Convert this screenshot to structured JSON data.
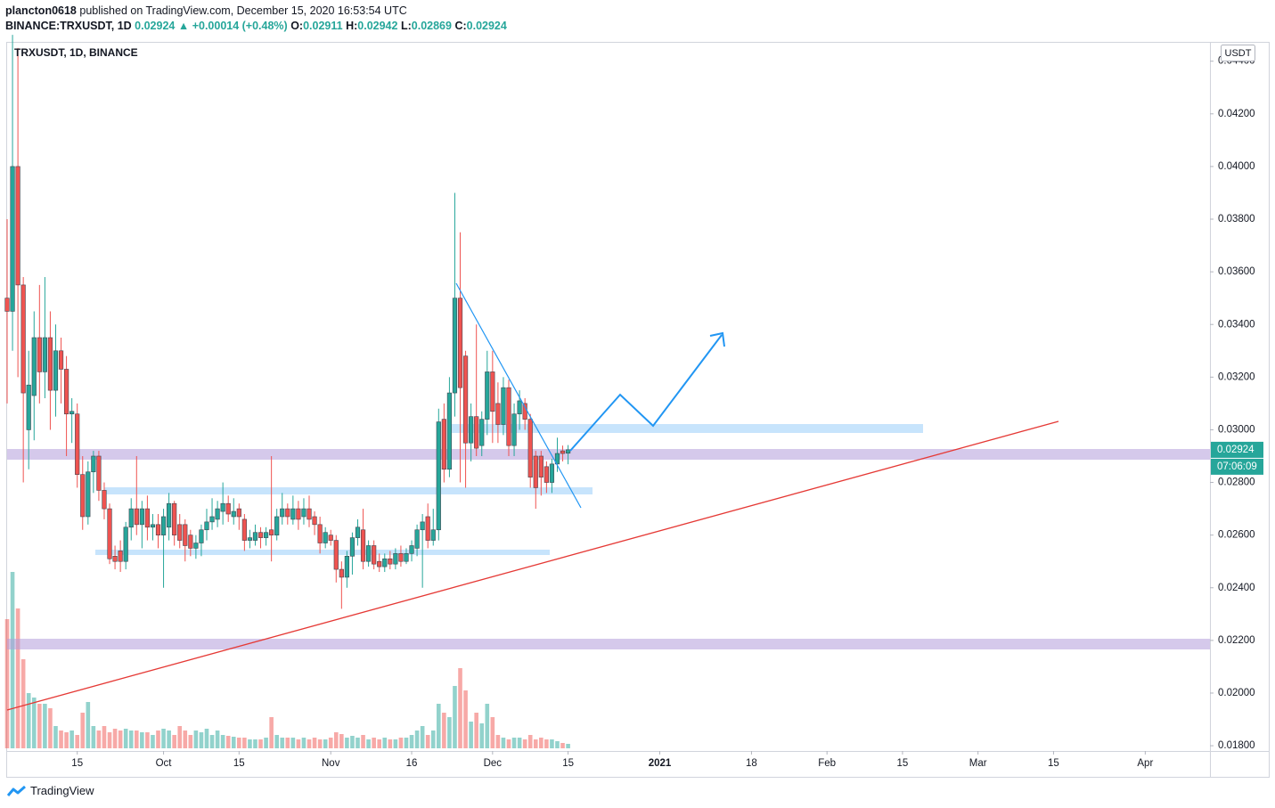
{
  "header": {
    "author": "plancton0618",
    "published": "published on TradingView.com, December 15, 2020 16:53:54 UTC",
    "symbol": "BINANCE:TRXUSDT, 1D",
    "price": "0.02924",
    "change": "▲ +0.00014 (+0.48%)",
    "ohlc": [
      {
        "label": "O:",
        "value": "0.02911"
      },
      {
        "label": "H:",
        "value": "0.02942"
      },
      {
        "label": "L:",
        "value": "0.02869"
      },
      {
        "label": "C:",
        "value": "0.02924"
      }
    ]
  },
  "footer": {
    "brand": "TradingView"
  },
  "chart_data": {
    "type": "candlestick",
    "title": "TRXUSDT, 1D, BINANCE",
    "currency": "USDT",
    "last_price": {
      "value": 0.02924,
      "label": "0.02924"
    },
    "countdown": "07:06:09",
    "up_color": "#26a69a",
    "down_color": "#ef5350",
    "x": [
      "2020-09-02",
      "2020-09-03",
      "2020-09-04",
      "2020-09-05",
      "2020-09-06",
      "2020-09-07",
      "2020-09-08",
      "2020-09-09",
      "2020-09-10",
      "2020-09-11",
      "2020-09-12",
      "2020-09-13",
      "2020-09-14",
      "2020-09-15",
      "2020-09-16",
      "2020-09-17",
      "2020-09-18",
      "2020-09-19",
      "2020-09-20",
      "2020-09-21",
      "2020-09-22",
      "2020-09-23",
      "2020-09-24",
      "2020-09-25",
      "2020-09-26",
      "2020-09-27",
      "2020-09-28",
      "2020-09-29",
      "2020-09-30",
      "2020-10-01",
      "2020-10-02",
      "2020-10-03",
      "2020-10-04",
      "2020-10-05",
      "2020-10-06",
      "2020-10-07",
      "2020-10-08",
      "2020-10-09",
      "2020-10-10",
      "2020-10-11",
      "2020-10-12",
      "2020-10-13",
      "2020-10-14",
      "2020-10-15",
      "2020-10-16",
      "2020-10-17",
      "2020-10-18",
      "2020-10-19",
      "2020-10-20",
      "2020-10-21",
      "2020-10-22",
      "2020-10-23",
      "2020-10-24",
      "2020-10-25",
      "2020-10-26",
      "2020-10-27",
      "2020-10-28",
      "2020-10-29",
      "2020-10-30",
      "2020-10-31",
      "2020-11-01",
      "2020-11-02",
      "2020-11-03",
      "2020-11-04",
      "2020-11-05",
      "2020-11-06",
      "2020-11-07",
      "2020-11-08",
      "2020-11-09",
      "2020-11-10",
      "2020-11-11",
      "2020-11-12",
      "2020-11-13",
      "2020-11-14",
      "2020-11-15",
      "2020-11-16",
      "2020-11-17",
      "2020-11-18",
      "2020-11-19",
      "2020-11-20",
      "2020-11-21",
      "2020-11-22",
      "2020-11-23",
      "2020-11-24",
      "2020-11-25",
      "2020-11-26",
      "2020-11-27",
      "2020-11-28",
      "2020-11-29",
      "2020-11-30",
      "2020-12-01",
      "2020-12-02",
      "2020-12-03",
      "2020-12-04",
      "2020-12-05",
      "2020-12-06",
      "2020-12-07",
      "2020-12-08",
      "2020-12-09",
      "2020-12-10",
      "2020-12-11",
      "2020-12-12",
      "2020-12-13",
      "2020-12-14",
      "2020-12-15"
    ],
    "open": [
      0.035,
      0.0345,
      0.04,
      0.0355,
      0.03,
      0.0313,
      0.0335,
      0.0322,
      0.0335,
      0.0315,
      0.033,
      0.0323,
      0.0306,
      0.0306,
      0.0283,
      0.0267,
      0.0284,
      0.029,
      0.0277,
      0.027,
      0.0252,
      0.0254,
      0.025,
      0.0263,
      0.027,
      0.0264,
      0.027,
      0.0263,
      0.0264,
      0.026,
      0.0263,
      0.0272,
      0.0264,
      0.0264,
      0.026,
      0.0255,
      0.0257,
      0.0262,
      0.0265,
      0.0266,
      0.0269,
      0.0272,
      0.0267,
      0.027,
      0.0266,
      0.0258,
      0.0258,
      0.0261,
      0.0259,
      0.0262,
      0.026,
      0.0267,
      0.027,
      0.0266,
      0.027,
      0.0267,
      0.027,
      0.0267,
      0.0264,
      0.0257,
      0.026,
      0.0258,
      0.0247,
      0.0244,
      0.0252,
      0.0259,
      0.0262,
      0.025,
      0.0256,
      0.025,
      0.0248,
      0.0251,
      0.0249,
      0.0253,
      0.025,
      0.0253,
      0.0255,
      0.0262,
      0.0267,
      0.0258,
      0.0262,
      0.0304,
      0.0285,
      0.0314,
      0.035,
      0.0328,
      0.0295,
      0.0305,
      0.0294,
      0.0304,
      0.0322,
      0.031,
      0.0302,
      0.0316,
      0.0294,
      0.0306,
      0.031,
      0.0304,
      0.029,
      0.029,
      0.0286,
      0.028,
      0.0287,
      0.0292,
      0.02911
    ],
    "high": [
      0.038,
      0.045,
      0.0445,
      0.0358,
      0.033,
      0.0345,
      0.0355,
      0.0358,
      0.0345,
      0.034,
      0.0335,
      0.0328,
      0.0312,
      0.031,
      0.029,
      0.0288,
      0.0292,
      0.0292,
      0.028,
      0.0272,
      0.0256,
      0.0258,
      0.0265,
      0.0274,
      0.029,
      0.0273,
      0.0275,
      0.0268,
      0.0268,
      0.027,
      0.0276,
      0.0273,
      0.0268,
      0.0266,
      0.0262,
      0.026,
      0.0264,
      0.027,
      0.0274,
      0.0273,
      0.028,
      0.0275,
      0.0274,
      0.0272,
      0.0268,
      0.0262,
      0.0264,
      0.0263,
      0.0263,
      0.029,
      0.027,
      0.0276,
      0.0272,
      0.0275,
      0.0273,
      0.0274,
      0.0275,
      0.0269,
      0.0267,
      0.0263,
      0.0262,
      0.026,
      0.025,
      0.0254,
      0.0261,
      0.0266,
      0.027,
      0.0258,
      0.0258,
      0.0253,
      0.0253,
      0.0254,
      0.0255,
      0.0256,
      0.0255,
      0.0258,
      0.0264,
      0.0268,
      0.0272,
      0.027,
      0.0308,
      0.031,
      0.032,
      0.039,
      0.0375,
      0.033,
      0.031,
      0.034,
      0.0307,
      0.033,
      0.033,
      0.0318,
      0.032,
      0.0319,
      0.031,
      0.0315,
      0.0312,
      0.0306,
      0.0292,
      0.0292,
      0.0288,
      0.0289,
      0.0297,
      0.0294,
      0.02942
    ],
    "low": [
      0.031,
      0.033,
      0.032,
      0.028,
      0.0285,
      0.0296,
      0.031,
      0.0312,
      0.03,
      0.0305,
      0.031,
      0.029,
      0.0295,
      0.0278,
      0.0262,
      0.0264,
      0.0276,
      0.0273,
      0.0266,
      0.0249,
      0.0247,
      0.0246,
      0.0247,
      0.0258,
      0.026,
      0.0255,
      0.0258,
      0.0258,
      0.0255,
      0.024,
      0.0258,
      0.0256,
      0.0255,
      0.025,
      0.0252,
      0.0251,
      0.0252,
      0.0258,
      0.0262,
      0.0263,
      0.0264,
      0.0265,
      0.0264,
      0.0262,
      0.0254,
      0.0255,
      0.0256,
      0.0255,
      0.0256,
      0.025,
      0.0258,
      0.0264,
      0.0264,
      0.0264,
      0.0262,
      0.0264,
      0.0263,
      0.026,
      0.0253,
      0.0255,
      0.0256,
      0.0242,
      0.0232,
      0.024,
      0.0245,
      0.0256,
      0.0247,
      0.0248,
      0.0247,
      0.0246,
      0.0246,
      0.0247,
      0.0247,
      0.0248,
      0.0249,
      0.025,
      0.0252,
      0.024,
      0.0255,
      0.0256,
      0.0258,
      0.028,
      0.0282,
      0.0305,
      0.028,
      0.0278,
      0.0288,
      0.029,
      0.029,
      0.0298,
      0.0295,
      0.0295,
      0.0298,
      0.029,
      0.029,
      0.03,
      0.03,
      0.0278,
      0.027,
      0.0275,
      0.0276,
      0.0276,
      0.0284,
      0.0288,
      0.02869
    ],
    "close": [
      0.0345,
      0.04,
      0.0355,
      0.0314,
      0.0317,
      0.0335,
      0.0322,
      0.0335,
      0.0315,
      0.033,
      0.0323,
      0.0306,
      0.0307,
      0.0283,
      0.0267,
      0.0284,
      0.029,
      0.0277,
      0.027,
      0.0251,
      0.025,
      0.025,
      0.0263,
      0.027,
      0.0264,
      0.027,
      0.0263,
      0.0264,
      0.026,
      0.0267,
      0.0272,
      0.026,
      0.0258,
      0.0256,
      0.0255,
      0.0257,
      0.0262,
      0.0265,
      0.0267,
      0.027,
      0.0272,
      0.0268,
      0.0269,
      0.0267,
      0.0258,
      0.0259,
      0.0261,
      0.0259,
      0.0261,
      0.026,
      0.0267,
      0.027,
      0.0267,
      0.027,
      0.0266,
      0.027,
      0.0266,
      0.0264,
      0.0257,
      0.0261,
      0.0258,
      0.0247,
      0.0244,
      0.0252,
      0.0259,
      0.0263,
      0.025,
      0.0256,
      0.0249,
      0.0248,
      0.0251,
      0.0249,
      0.0253,
      0.025,
      0.0253,
      0.0256,
      0.0262,
      0.0265,
      0.0258,
      0.0262,
      0.0303,
      0.0285,
      0.0314,
      0.035,
      0.0316,
      0.0295,
      0.0305,
      0.0293,
      0.0304,
      0.0322,
      0.0307,
      0.0302,
      0.0316,
      0.0294,
      0.0306,
      0.0311,
      0.0304,
      0.0282,
      0.0278,
      0.0282,
      0.028,
      0.0287,
      0.0291,
      0.0291,
      0.02924
    ],
    "volume": [
      145,
      198,
      157,
      100,
      62,
      57,
      50,
      50,
      45,
      25,
      20,
      18,
      20,
      15,
      40,
      52,
      25,
      20,
      25,
      18,
      22,
      20,
      22,
      20,
      20,
      18,
      18,
      15,
      20,
      22,
      20,
      15,
      25,
      20,
      15,
      20,
      18,
      22,
      15,
      20,
      15,
      14,
      13,
      12,
      12,
      10,
      10,
      10,
      12,
      35,
      15,
      12,
      12,
      12,
      10,
      12,
      10,
      12,
      10,
      10,
      12,
      18,
      16,
      12,
      14,
      12,
      15,
      10,
      12,
      10,
      12,
      10,
      10,
      12,
      12,
      15,
      20,
      25,
      15,
      20,
      50,
      40,
      35,
      70,
      90,
      65,
      30,
      40,
      28,
      50,
      35,
      15,
      12,
      10,
      12,
      12,
      10,
      15,
      10,
      12,
      10,
      10,
      8,
      6,
      5
    ],
    "xlim": [
      "2020-09-02",
      "2021-04-13"
    ],
    "xticks": [
      {
        "value": "2020-09-15",
        "label": "15"
      },
      {
        "value": "2020-10-01",
        "label": "Oct"
      },
      {
        "value": "2020-10-15",
        "label": "15"
      },
      {
        "value": "2020-11-01",
        "label": "Nov"
      },
      {
        "value": "2020-11-16",
        "label": "16"
      },
      {
        "value": "2020-12-01",
        "label": "Dec"
      },
      {
        "value": "2020-12-15",
        "label": "15"
      },
      {
        "value": "2021-01-01",
        "label": "2021"
      },
      {
        "value": "2021-01-18",
        "label": "18"
      },
      {
        "value": "2021-02-01",
        "label": "Feb"
      },
      {
        "value": "2021-02-15",
        "label": "15"
      },
      {
        "value": "2021-03-01",
        "label": "Mar"
      },
      {
        "value": "2021-03-15",
        "label": "15"
      },
      {
        "value": "2021-04-01",
        "label": "Apr"
      }
    ],
    "ylim": [
      0.0178,
      0.0447
    ],
    "yticks": [
      {
        "value": 0.018,
        "label": "0.01800"
      },
      {
        "value": 0.02,
        "label": "0.02000"
      },
      {
        "value": 0.022,
        "label": "0.02200"
      },
      {
        "value": 0.024,
        "label": "0.02400"
      },
      {
        "value": 0.026,
        "label": "0.02600"
      },
      {
        "value": 0.028,
        "label": "0.02800"
      },
      {
        "value": 0.03,
        "label": "0.03000"
      },
      {
        "value": 0.032,
        "label": "0.03200"
      },
      {
        "value": 0.034,
        "label": "0.03400"
      },
      {
        "value": 0.036,
        "label": "0.03600"
      },
      {
        "value": 0.038,
        "label": "0.03800"
      },
      {
        "value": 0.04,
        "label": "0.04000"
      },
      {
        "value": 0.042,
        "label": "0.04200"
      },
      {
        "value": 0.044,
        "label": "0.04400"
      }
    ],
    "grid": false
  }
}
